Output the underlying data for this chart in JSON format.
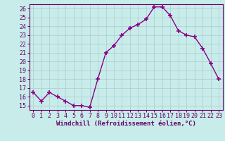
{
  "x": [
    0,
    1,
    2,
    3,
    4,
    5,
    6,
    7,
    8,
    9,
    10,
    11,
    12,
    13,
    14,
    15,
    16,
    17,
    18,
    19,
    20,
    21,
    22,
    23
  ],
  "y": [
    16.5,
    15.5,
    16.5,
    16.0,
    15.5,
    15.0,
    15.0,
    14.8,
    18.0,
    21.0,
    21.8,
    23.0,
    23.8,
    24.2,
    24.8,
    26.2,
    26.2,
    25.2,
    23.5,
    23.0,
    22.8,
    21.5,
    19.8,
    18.0
  ],
  "line_color": "#880088",
  "marker": "+",
  "bg_color": "#c8ecea",
  "grid_color": "#aacccc",
  "xlabel": "Windchill (Refroidissement éolien,°C)",
  "xlabel_color": "#660066",
  "tick_color": "#660066",
  "axis_color": "#660066",
  "ylim": [
    14.5,
    26.5
  ],
  "xlim": [
    -0.5,
    23.5
  ],
  "yticks": [
    15,
    16,
    17,
    18,
    19,
    20,
    21,
    22,
    23,
    24,
    25,
    26
  ],
  "xticks": [
    0,
    1,
    2,
    3,
    4,
    5,
    6,
    7,
    8,
    9,
    10,
    11,
    12,
    13,
    14,
    15,
    16,
    17,
    18,
    19,
    20,
    21,
    22,
    23
  ],
  "tick_fontsize": 6,
  "xlabel_fontsize": 6.5,
  "linewidth": 1.0,
  "markersize": 4,
  "markeredgewidth": 1.2
}
